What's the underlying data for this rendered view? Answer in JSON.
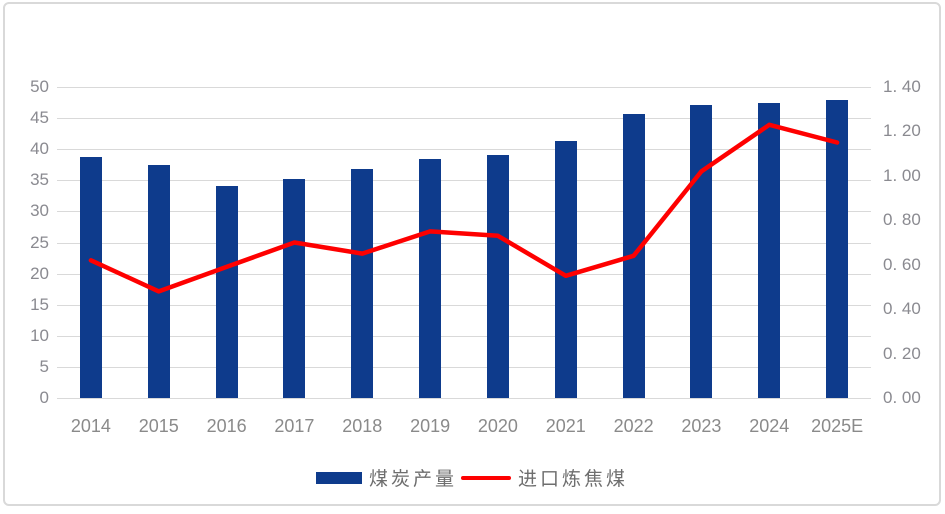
{
  "legend": {
    "items": [
      {
        "label": "煤炭产量",
        "swatch": "bar",
        "color": "#0e3b8c"
      },
      {
        "label": "进口炼焦煤",
        "swatch": "line",
        "color": "#fe0000"
      }
    ]
  },
  "colors": {
    "bar": "#0e3b8c",
    "line": "#fe0000",
    "gridline": "#d9d9d9",
    "axis_text": "#8a8a8a"
  },
  "chart_data": {
    "type": "combo",
    "subtypes": [
      "bar",
      "line"
    ],
    "categories": [
      "2014",
      "2015",
      "2016",
      "2017",
      "2018",
      "2019",
      "2020",
      "2021",
      "2022",
      "2023",
      "2024",
      "2025E"
    ],
    "series": [
      {
        "name": "煤炭产量",
        "type": "bar",
        "axis": "left",
        "color": "#0e3b8c",
        "values": [
          38.7,
          37.5,
          34.1,
          35.2,
          36.8,
          38.5,
          39.0,
          41.3,
          45.6,
          47.1,
          47.5,
          47.9
        ]
      },
      {
        "name": "进口炼焦煤",
        "type": "line",
        "axis": "right",
        "color": "#fe0000",
        "values": [
          0.62,
          0.48,
          0.59,
          0.7,
          0.65,
          0.75,
          0.73,
          0.55,
          0.64,
          1.02,
          1.23,
          1.15
        ]
      }
    ],
    "left_axis": {
      "min": 0,
      "max": 50,
      "tick_step": 5,
      "ticks": [
        "50",
        "45",
        "40",
        "35",
        "30",
        "25",
        "20",
        "15",
        "10",
        "5",
        "0"
      ]
    },
    "right_axis": {
      "min": 0.0,
      "max": 1.4,
      "tick_step": 0.2,
      "ticks": [
        "1. 40",
        "1. 20",
        "1. 00",
        "0. 80",
        "0. 60",
        "0. 40",
        "0. 20",
        "0. 00"
      ]
    },
    "grid": true,
    "legend_position": "bottom",
    "title": ""
  }
}
